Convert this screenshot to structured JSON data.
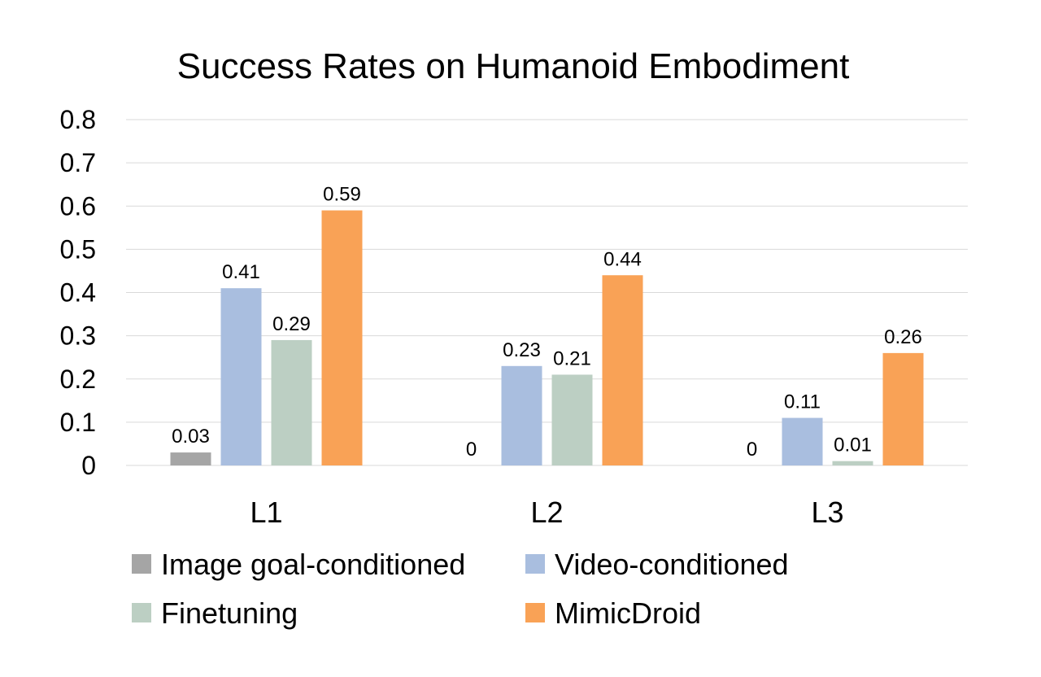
{
  "chart_data": {
    "type": "bar",
    "title": "Success Rates on Humanoid Embodiment",
    "xlabel": "",
    "ylabel": "",
    "categories": [
      "L1",
      "L2",
      "L3"
    ],
    "ylim": [
      0,
      0.8
    ],
    "yticks": [
      "0",
      "0.1",
      "0.2",
      "0.3",
      "0.4",
      "0.5",
      "0.6",
      "0.7",
      "0.8"
    ],
    "grid": true,
    "legend_position": "bottom",
    "series": [
      {
        "name": "Image goal-conditioned",
        "color": "#a5a5a5",
        "values": [
          0.03,
          0,
          0
        ],
        "labels": [
          "0.03",
          "0",
          "0"
        ]
      },
      {
        "name": "Video-conditioned",
        "color": "#a9bedf",
        "values": [
          0.41,
          0.23,
          0.11
        ],
        "labels": [
          "0.41",
          "0.23",
          "0.11"
        ]
      },
      {
        "name": "Finetuning",
        "color": "#bccfc3",
        "values": [
          0.29,
          0.21,
          0.01
        ],
        "labels": [
          "0.29",
          "0.21",
          "0.01"
        ]
      },
      {
        "name": "MimicDroid",
        "color": "#f9a256",
        "values": [
          0.59,
          0.44,
          0.26
        ],
        "labels": [
          "0.59",
          "0.44",
          "0.26"
        ]
      }
    ]
  }
}
